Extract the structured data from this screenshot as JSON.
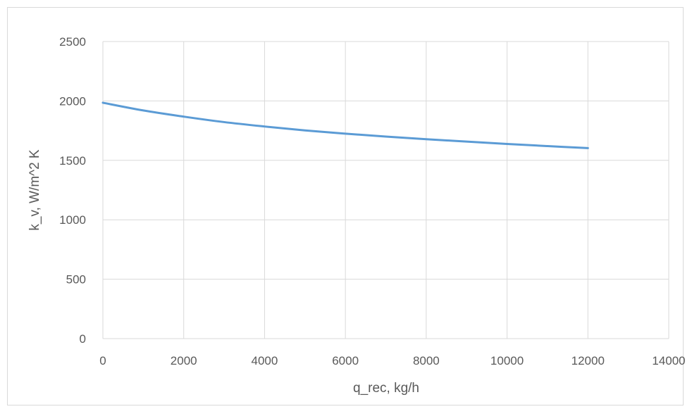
{
  "chart_data": {
    "type": "line",
    "title": "",
    "xlabel": "q_rec, kg/h",
    "ylabel": "k_v, W/m^2 K",
    "xlim": [
      0,
      14000
    ],
    "ylim": [
      0,
      2500
    ],
    "x_ticks": [
      "0",
      "2000",
      "4000",
      "6000",
      "8000",
      "10000",
      "12000",
      "14000"
    ],
    "y_ticks": [
      "0",
      "500",
      "1000",
      "1500",
      "2000",
      "2500"
    ],
    "grid": true,
    "legend": "none",
    "series": [
      {
        "color": "#5b9bd5",
        "x": [
          0,
          1000,
          2000,
          3000,
          4000,
          5000,
          6000,
          7000,
          8000,
          9000,
          10000,
          11000,
          12000
        ],
        "y": [
          1985,
          1920,
          1868,
          1822,
          1785,
          1752,
          1725,
          1700,
          1678,
          1658,
          1638,
          1620,
          1603
        ]
      }
    ]
  }
}
